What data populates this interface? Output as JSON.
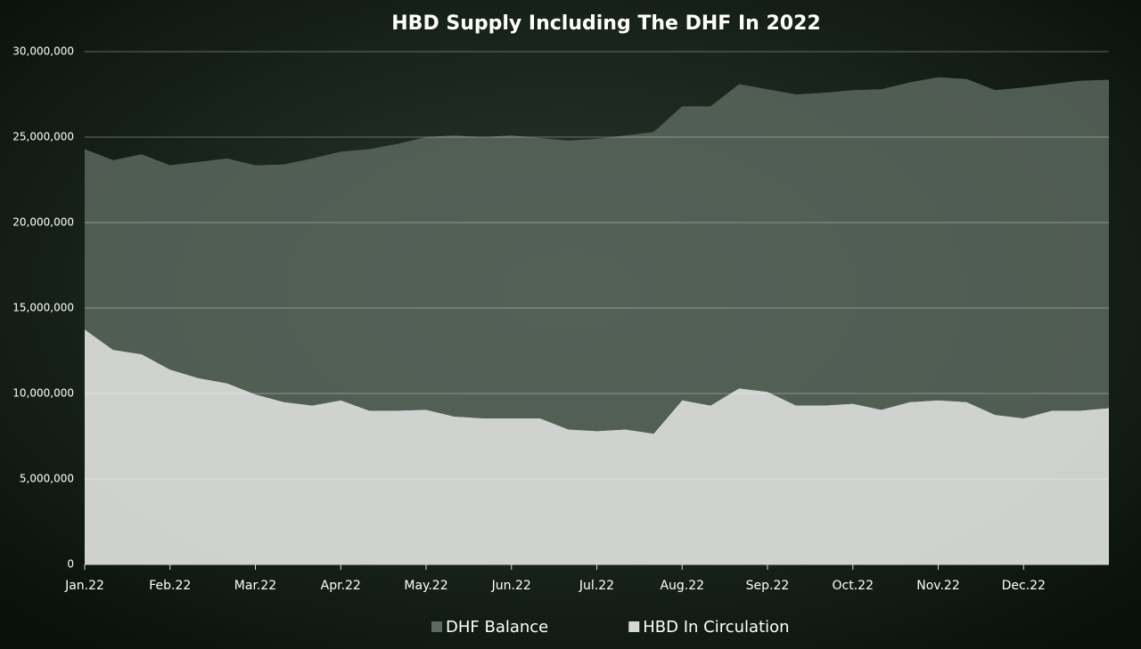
{
  "chart_data": {
    "type": "stacked_area",
    "title": "HBD Supply Including The DHF In 2022",
    "categories": [
      "Jan.22",
      null,
      null,
      "Feb.22",
      null,
      null,
      "Mar.22",
      null,
      null,
      "Apr.22",
      null,
      null,
      "May.22",
      null,
      null,
      "Jun.22",
      null,
      null,
      "Jul.22",
      null,
      null,
      "Aug.22",
      null,
      null,
      "Sep.22",
      null,
      null,
      "Oct.22",
      null,
      null,
      "Nov.22",
      null,
      null,
      "Dec.22",
      null,
      null,
      null
    ],
    "series": [
      {
        "name": "DHF Balance",
        "color": "#5d6a60",
        "values": [
          10550000,
          11100000,
          11700000,
          11950000,
          12650000,
          13150000,
          13400000,
          13900000,
          14450000,
          14550000,
          15300000,
          15600000,
          15950000,
          16450000,
          16450000,
          16550000,
          16400000,
          16900000,
          17100000,
          17200000,
          17650000,
          17200000,
          17500000,
          17800000,
          17700000,
          18200000,
          18300000,
          18350000,
          18750000,
          18700000,
          18900000,
          18900000,
          19000000,
          19350000,
          19100000,
          19300000,
          19200000
        ]
      },
      {
        "name": "HBD In Circulation",
        "color": "#d6d8d5",
        "values": [
          13750000,
          12550000,
          12300000,
          11400000,
          10900000,
          10600000,
          9950000,
          9500000,
          9300000,
          9600000,
          9000000,
          9000000,
          9050000,
          8650000,
          8550000,
          8550000,
          8550000,
          7900000,
          7800000,
          7900000,
          7650000,
          9600000,
          9300000,
          10300000,
          10100000,
          9300000,
          9300000,
          9400000,
          9050000,
          9500000,
          9600000,
          9500000,
          8750000,
          8550000,
          9000000,
          9000000,
          9150000
        ]
      }
    ],
    "ylim": [
      0,
      30000000
    ],
    "yticks": [
      0,
      {
        "value": 5000000,
        "label": "5,000,000"
      },
      {
        "value": 10000000,
        "label": "10,000,000"
      },
      {
        "value": 15000000,
        "label": "15,000,000"
      },
      {
        "value": 20000000,
        "label": "20,000,000"
      },
      {
        "value": 25000000,
        "label": "25,000,000"
      },
      {
        "value": 30000000,
        "label": "30,000,000"
      }
    ],
    "grid": true,
    "stacked": true,
    "legend": "bottom"
  }
}
